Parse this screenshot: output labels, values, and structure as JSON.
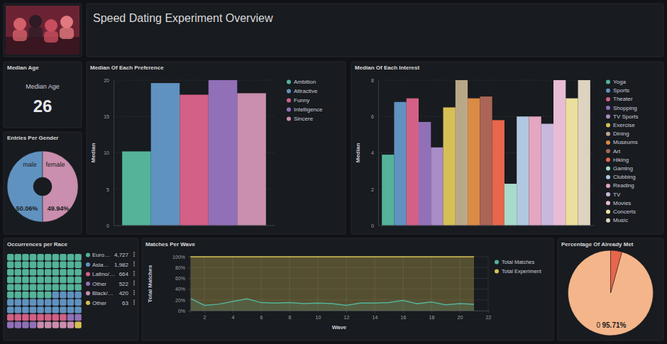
{
  "header": {
    "title": "Speed Dating Experiment Overview"
  },
  "chart_data": [
    {
      "type": "metric",
      "title": "Median Age",
      "label": "Median Age",
      "value": 26
    },
    {
      "type": "pie",
      "title": "Entries Per Gender",
      "categories": [
        "male",
        "female"
      ],
      "values": [
        50.06,
        49.94
      ],
      "value_labels": [
        "50.06%",
        "49.94%"
      ],
      "colors": [
        "#6092c0",
        "#ca8eae"
      ],
      "data_labels": true
    },
    {
      "type": "bar",
      "title": "Median Of Each Preference",
      "y_label": "Median",
      "categories": [
        "Ambition",
        "Attractive",
        "Funny",
        "Intelligence",
        "Sincere"
      ],
      "values": [
        10.2,
        19.6,
        18,
        20,
        18.2
      ],
      "colors": [
        "#54b399",
        "#6092c0",
        "#d36086",
        "#9170b8",
        "#ca8eae"
      ],
      "ylim": [
        0,
        20
      ],
      "yticks": [
        0,
        5,
        10,
        15,
        20
      ],
      "grid": true,
      "legend": "right",
      "tick_labels": "y"
    },
    {
      "type": "bar",
      "title": "Median Of Each Interest",
      "y_label": "Median",
      "categories": [
        "Yoga",
        "Sports",
        "Theater",
        "Shopping",
        "TV Sports",
        "Exercise",
        "Dining",
        "Museums",
        "Art",
        "Hiking",
        "Gaming",
        "Clubbing",
        "Reading",
        "TV",
        "Movies",
        "Concerts",
        "Music"
      ],
      "values": [
        3.9,
        6.8,
        7,
        5.7,
        4.3,
        6.5,
        8,
        7,
        7.1,
        5.8,
        2.3,
        6,
        6,
        5.6,
        8,
        7,
        8
      ],
      "colors": [
        "#54b399",
        "#6092c0",
        "#d36086",
        "#9170b8",
        "#a98cc8",
        "#d6bf57",
        "#b9a888",
        "#da8b45",
        "#aa6556",
        "#e7664c",
        "#a8dbcc",
        "#b0c9e0",
        "#e4a6c0",
        "#c8b8dc",
        "#e8bcd4",
        "#eadf9c",
        "#ddd3c0"
      ],
      "ylim": [
        0,
        8
      ],
      "yticks": [
        0,
        2,
        4,
        6,
        8
      ],
      "grid": true,
      "legend": "right",
      "tick_labels": "y"
    },
    {
      "type": "waffle",
      "title": "Occurrences per Race",
      "categories": [
        "Euro…",
        "Asia…",
        "Latino/…",
        "Other",
        "Black/…",
        "Other"
      ],
      "values": [
        4727,
        1982,
        664,
        522,
        420,
        63
      ],
      "value_labels": [
        "4,727",
        "1,982",
        "664",
        "522",
        "420",
        "63"
      ],
      "colors": [
        "#54b399",
        "#6092c0",
        "#d36086",
        "#9170b8",
        "#ca8eae",
        "#d6bf57"
      ],
      "legend": "right"
    },
    {
      "type": "area",
      "title": "Matches Per Wave",
      "x_label": "Wave",
      "y_label": "Total Matches",
      "x": [
        1,
        2,
        3,
        4,
        5,
        6,
        7,
        8,
        9,
        10,
        11,
        12,
        13,
        14,
        15,
        16,
        17,
        18,
        19,
        20,
        21
      ],
      "series": [
        {
          "name": "Total Matches",
          "color": "#54b399",
          "values": [
            23,
            10,
            12,
            17,
            22,
            15,
            14,
            15,
            13,
            14,
            13,
            10,
            14,
            14,
            15,
            19,
            13,
            16,
            11,
            13,
            12
          ]
        },
        {
          "name": "Total Experiment",
          "color": "#d6bf57",
          "values": [
            100,
            100,
            100,
            100,
            100,
            100,
            100,
            100,
            100,
            100,
            100,
            100,
            100,
            100,
            100,
            100,
            100,
            100,
            100,
            100,
            100
          ]
        }
      ],
      "xlim": [
        1,
        22
      ],
      "xticks": [
        2,
        4,
        6,
        8,
        10,
        12,
        14,
        16,
        18,
        20,
        22
      ],
      "ylim": [
        0,
        100
      ],
      "yticks": [
        {
          "value": 0,
          "label": "0%"
        },
        {
          "value": 20,
          "label": "20%"
        },
        {
          "value": 40,
          "label": "40%"
        },
        {
          "value": 60,
          "label": "60%"
        },
        {
          "value": 80,
          "label": "80%"
        },
        {
          "value": 100,
          "label": "100%"
        }
      ],
      "grid": true,
      "legend": "right"
    },
    {
      "type": "pie",
      "title": "Percentage Of Already Met",
      "categories": [
        "0",
        null
      ],
      "values": [
        95.71,
        4.29
      ],
      "value_labels": [
        "95.71%",
        null
      ],
      "colors": [
        "#f4b58a",
        "#e7664c"
      ],
      "data_labels": true
    }
  ]
}
